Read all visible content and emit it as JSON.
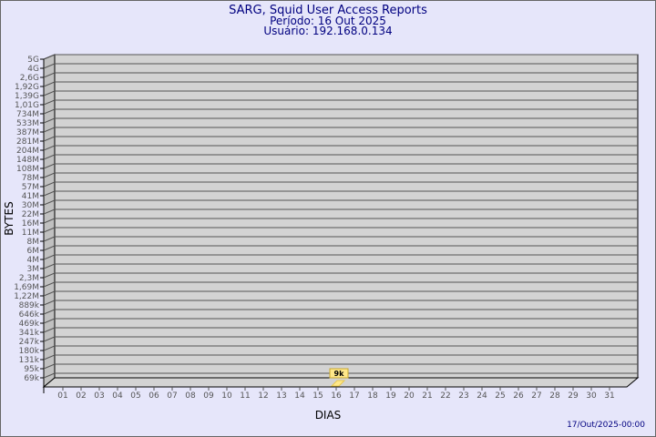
{
  "header": {
    "title": "SARG, Squid User Access Reports",
    "period": "Período: 16 Out 2025",
    "user": "Usuário: 192.168.0.134"
  },
  "footer": {
    "timestamp": "17/Out/2025-00:00"
  },
  "chart_data": {
    "type": "bar",
    "title": "SARG, Squid User Access Reports",
    "xlabel": "DIAS",
    "ylabel": "BYTES",
    "y_scale": "log",
    "grid": true,
    "categories": [
      "01",
      "02",
      "03",
      "04",
      "05",
      "06",
      "07",
      "08",
      "09",
      "10",
      "11",
      "12",
      "13",
      "14",
      "15",
      "16",
      "17",
      "18",
      "19",
      "20",
      "21",
      "22",
      "23",
      "24",
      "25",
      "26",
      "27",
      "28",
      "29",
      "30",
      "31"
    ],
    "y_tick_labels": [
      "5G",
      "4G",
      "2,6G",
      "1,92G",
      "1,39G",
      "1,01G",
      "734M",
      "533M",
      "387M",
      "281M",
      "204M",
      "148M",
      "108M",
      "78M",
      "57M",
      "41M",
      "30M",
      "22M",
      "16M",
      "11M",
      "8M",
      "6M",
      "4M",
      "3M",
      "2,3M",
      "1,69M",
      "1,22M",
      "889k",
      "646k",
      "469k",
      "341k",
      "247k",
      "180k",
      "131k",
      "95k",
      "69k"
    ],
    "series": [
      {
        "points": [
          {
            "x": "16",
            "value": 9000,
            "label": "9k"
          }
        ]
      }
    ],
    "colors": {
      "background": "#e6e6fa",
      "wall": "#d3d3d3",
      "side": "#c0c0c0",
      "bar": "#ffe88a",
      "text": "#000080"
    }
  }
}
